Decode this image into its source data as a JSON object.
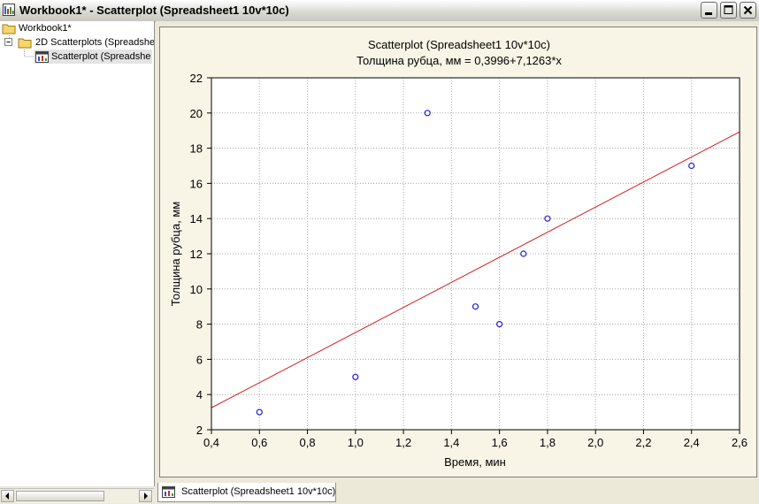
{
  "window": {
    "title": "Workbook1* - Scatterplot (Spreadsheet1 10v*10c)",
    "minimize_icon": "minimize-icon",
    "maximize_icon": "maximize-icon",
    "close_icon": "close-icon"
  },
  "tree": {
    "items": [
      {
        "label": "Workbook1*",
        "icon": "folder-icon",
        "level": 0
      },
      {
        "label": "2D Scatterplots (Spreadshe",
        "icon": "folder-icon",
        "level": 1,
        "expander": "−"
      },
      {
        "label": "Scatterplot (Spreadshe",
        "icon": "graph-icon",
        "level": 2,
        "selected": true
      }
    ]
  },
  "tab": {
    "label": "Scatterplot (Spreadsheet1 10v*10c)",
    "icon": "graph-icon"
  },
  "colors": {
    "point": "#1E1ED8",
    "fit_line": "#D02020",
    "plot_bg": "#FFFFFF",
    "chart_bg": "#F8F4E6"
  },
  "chart_data": {
    "type": "scatter",
    "title": "Scatterplot (Spreadsheet1 10v*10c)",
    "subtitle": "Толщина рубца, мм = 0,3996+7,1263*x",
    "xlabel": "Время, мин",
    "ylabel": "Толщина рубца, мм",
    "xlim": [
      0.4,
      2.6
    ],
    "ylim": [
      2,
      22
    ],
    "grid": true,
    "x_ticks": [
      "0,4",
      "0,6",
      "0,8",
      "1,0",
      "1,2",
      "1,4",
      "1,6",
      "1,8",
      "2,0",
      "2,2",
      "2,4",
      "2,6"
    ],
    "y_ticks": [
      "2",
      "4",
      "6",
      "8",
      "10",
      "12",
      "14",
      "16",
      "18",
      "20",
      "22"
    ],
    "points": [
      {
        "x": 0.6,
        "y": 3
      },
      {
        "x": 1.0,
        "y": 5
      },
      {
        "x": 1.3,
        "y": 20
      },
      {
        "x": 1.5,
        "y": 9
      },
      {
        "x": 1.6,
        "y": 8
      },
      {
        "x": 1.7,
        "y": 12
      },
      {
        "x": 1.8,
        "y": 14
      },
      {
        "x": 2.4,
        "y": 17
      }
    ],
    "fit": {
      "intercept": 0.3996,
      "slope": 7.1263
    }
  }
}
